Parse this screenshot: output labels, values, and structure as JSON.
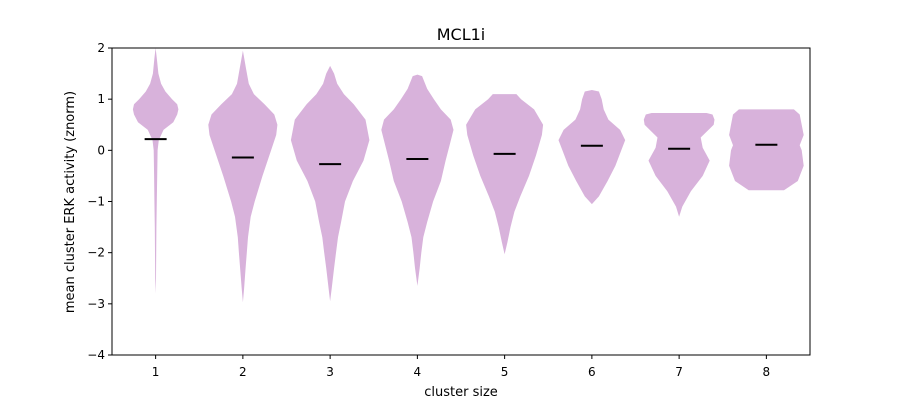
{
  "chart_data": {
    "type": "violin",
    "title": "MCL1i",
    "xlabel": "cluster size",
    "ylabel": "mean cluster ERK activity (znorm)",
    "categories": [
      "1",
      "2",
      "3",
      "4",
      "5",
      "6",
      "7",
      "8"
    ],
    "ylim": [
      -4,
      2
    ],
    "yticks": [
      2,
      1,
      0,
      -1,
      -2,
      -3,
      -4
    ],
    "ytick_labels": [
      "2",
      "1",
      "0",
      "−1",
      "−2",
      "−3",
      "−4"
    ],
    "grid": false,
    "legend": "none",
    "violin_color": "#d8b2db",
    "median_color": "#000000",
    "violins": [
      {
        "category": "1",
        "median": 0.22,
        "profile": [
          [
            -2.8,
            0
          ],
          [
            -2.5,
            0.01
          ],
          [
            -2.0,
            0.015
          ],
          [
            -1.5,
            0.02
          ],
          [
            -1.0,
            0.03
          ],
          [
            -0.5,
            0.04
          ],
          [
            0.0,
            0.05
          ],
          [
            0.2,
            0.08
          ],
          [
            0.4,
            0.2
          ],
          [
            0.55,
            0.45
          ],
          [
            0.7,
            0.55
          ],
          [
            0.8,
            0.58
          ],
          [
            0.9,
            0.55
          ],
          [
            1.0,
            0.42
          ],
          [
            1.15,
            0.25
          ],
          [
            1.3,
            0.14
          ],
          [
            1.5,
            0.07
          ],
          [
            1.8,
            0.03
          ],
          [
            2.0,
            0
          ]
        ]
      },
      {
        "category": "2",
        "median": -0.14,
        "profile": [
          [
            -2.97,
            0
          ],
          [
            -2.7,
            0.03
          ],
          [
            -2.3,
            0.07
          ],
          [
            -2.0,
            0.1
          ],
          [
            -1.7,
            0.13
          ],
          [
            -1.3,
            0.2
          ],
          [
            -1.0,
            0.3
          ],
          [
            -0.5,
            0.5
          ],
          [
            0.0,
            0.72
          ],
          [
            0.3,
            0.85
          ],
          [
            0.5,
            0.88
          ],
          [
            0.7,
            0.8
          ],
          [
            0.9,
            0.55
          ],
          [
            1.1,
            0.28
          ],
          [
            1.3,
            0.15
          ],
          [
            1.6,
            0.08
          ],
          [
            1.95,
            0
          ]
        ]
      },
      {
        "category": "3",
        "median": -0.27,
        "profile": [
          [
            -2.95,
            0
          ],
          [
            -2.7,
            0.04
          ],
          [
            -2.3,
            0.1
          ],
          [
            -2.0,
            0.15
          ],
          [
            -1.7,
            0.2
          ],
          [
            -1.4,
            0.28
          ],
          [
            -1.0,
            0.38
          ],
          [
            -0.6,
            0.58
          ],
          [
            -0.2,
            0.85
          ],
          [
            0.2,
            1.0
          ],
          [
            0.6,
            0.9
          ],
          [
            0.9,
            0.6
          ],
          [
            1.1,
            0.35
          ],
          [
            1.3,
            0.18
          ],
          [
            1.5,
            0.1
          ],
          [
            1.65,
            0
          ]
        ]
      },
      {
        "category": "4",
        "median": -0.17,
        "profile": [
          [
            -2.65,
            0
          ],
          [
            -2.3,
            0.06
          ],
          [
            -2.0,
            0.1
          ],
          [
            -1.7,
            0.15
          ],
          [
            -1.4,
            0.25
          ],
          [
            -1.0,
            0.4
          ],
          [
            -0.6,
            0.6
          ],
          [
            -0.2,
            0.72
          ],
          [
            0.1,
            0.82
          ],
          [
            0.4,
            0.92
          ],
          [
            0.6,
            0.85
          ],
          [
            0.8,
            0.6
          ],
          [
            1.0,
            0.42
          ],
          [
            1.2,
            0.25
          ],
          [
            1.45,
            0.12
          ],
          [
            1.48,
            0
          ]
        ]
      },
      {
        "category": "5",
        "median": -0.07,
        "profile": [
          [
            -2.03,
            0
          ],
          [
            -1.8,
            0.07
          ],
          [
            -1.5,
            0.15
          ],
          [
            -1.2,
            0.25
          ],
          [
            -0.9,
            0.4
          ],
          [
            -0.5,
            0.62
          ],
          [
            -0.1,
            0.8
          ],
          [
            0.3,
            0.95
          ],
          [
            0.5,
            0.98
          ],
          [
            0.8,
            0.75
          ],
          [
            1.0,
            0.42
          ],
          [
            1.1,
            0.3
          ]
        ]
      },
      {
        "category": "6",
        "median": 0.09,
        "profile": [
          [
            -1.05,
            0
          ],
          [
            -0.9,
            0.18
          ],
          [
            -0.6,
            0.4
          ],
          [
            -0.3,
            0.6
          ],
          [
            0.0,
            0.75
          ],
          [
            0.2,
            0.85
          ],
          [
            0.4,
            0.72
          ],
          [
            0.6,
            0.42
          ],
          [
            0.8,
            0.3
          ],
          [
            1.0,
            0.25
          ],
          [
            1.15,
            0.18
          ],
          [
            1.18,
            0
          ]
        ]
      },
      {
        "category": "7",
        "median": 0.03,
        "profile": [
          [
            -1.3,
            0
          ],
          [
            -1.1,
            0.08
          ],
          [
            -0.8,
            0.3
          ],
          [
            -0.5,
            0.6
          ],
          [
            -0.2,
            0.78
          ],
          [
            0.05,
            0.6
          ],
          [
            0.25,
            0.55
          ],
          [
            0.5,
            0.88
          ],
          [
            0.6,
            0.9
          ],
          [
            0.7,
            0.85
          ],
          [
            0.73,
            0.7
          ]
        ]
      },
      {
        "category": "8",
        "median": 0.11,
        "profile": [
          [
            -0.78,
            0
          ],
          [
            -0.78,
            0.45
          ],
          [
            -0.6,
            0.8
          ],
          [
            -0.3,
            0.95
          ],
          [
            0.0,
            0.9
          ],
          [
            0.1,
            0.85
          ],
          [
            0.3,
            0.95
          ],
          [
            0.5,
            0.9
          ],
          [
            0.7,
            0.85
          ],
          [
            0.8,
            0.7
          ],
          [
            0.8,
            0
          ]
        ]
      }
    ]
  }
}
